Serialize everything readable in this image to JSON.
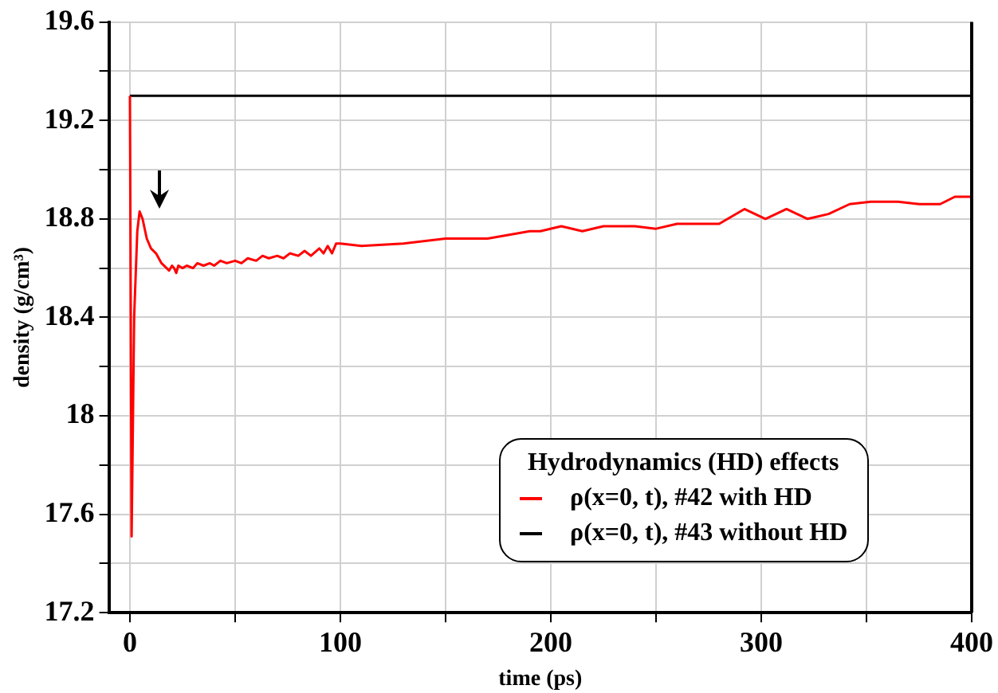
{
  "chart_data": {
    "type": "line",
    "xlabel": "time (ps)",
    "ylabel": "density (g/cm³)",
    "legend_title": "Hydrodynamics (HD) effects",
    "xlim": [
      -10,
      400
    ],
    "ylim": [
      17.2,
      19.6
    ],
    "xticks": [
      0,
      {
        "value": 50,
        "label": null
      },
      100,
      {
        "value": 150,
        "label": null
      },
      200,
      {
        "value": 250,
        "label": null
      },
      300,
      {
        "value": 350,
        "label": null
      },
      400
    ],
    "yticks": [
      17.2,
      {
        "value": 17.4,
        "label": null
      },
      17.6,
      {
        "value": 17.8,
        "label": null
      },
      18,
      {
        "value": 18.2,
        "label": null
      },
      18.4,
      {
        "value": 18.6,
        "label": null
      },
      18.8,
      {
        "value": 19,
        "label": null
      },
      19.2,
      {
        "value": 19.4,
        "label": null
      },
      19.6
    ],
    "grid": true,
    "legend": "bottom right",
    "marker": "none",
    "line_style": "solid",
    "series": [
      {
        "name": "ρ(x=0, t), #42 with HD",
        "color": "#ff0000",
        "x": [
          0,
          0.8,
          2,
          3.5,
          4.6,
          6,
          8,
          10,
          12.4,
          15,
          18.6,
          20,
          21,
          22,
          23,
          25,
          27,
          30,
          32,
          35,
          38,
          40,
          43,
          46,
          50,
          53,
          56,
          60,
          63,
          66,
          70,
          73,
          76,
          80,
          83,
          86,
          90,
          92,
          94,
          96,
          98,
          100,
          110,
          130,
          150,
          170,
          190,
          195,
          205,
          215,
          225,
          240,
          250,
          260,
          280,
          292,
          302,
          312,
          322,
          332,
          342,
          352,
          365,
          375,
          385,
          392,
          400
        ],
        "values": [
          19.3,
          17.51,
          18.4,
          18.75,
          18.83,
          18.8,
          18.72,
          18.68,
          18.66,
          18.62,
          18.59,
          18.61,
          18.6,
          18.58,
          18.61,
          18.6,
          18.61,
          18.6,
          18.62,
          18.61,
          18.62,
          18.61,
          18.63,
          18.62,
          18.63,
          18.62,
          18.64,
          18.63,
          18.65,
          18.64,
          18.65,
          18.64,
          18.66,
          18.65,
          18.67,
          18.65,
          18.68,
          18.66,
          18.69,
          18.66,
          18.7,
          18.7,
          18.69,
          18.7,
          18.72,
          18.72,
          18.75,
          18.75,
          18.77,
          18.75,
          18.77,
          18.77,
          18.76,
          18.78,
          18.78,
          18.84,
          18.8,
          18.84,
          18.8,
          18.82,
          18.86,
          18.87,
          18.87,
          18.86,
          18.86,
          18.89,
          18.89
        ]
      },
      {
        "name": "ρ(x=0, t), #43 without HD",
        "color": "#000000",
        "x": [
          0,
          400
        ],
        "values": [
          19.3,
          19.3
        ]
      }
    ]
  }
}
